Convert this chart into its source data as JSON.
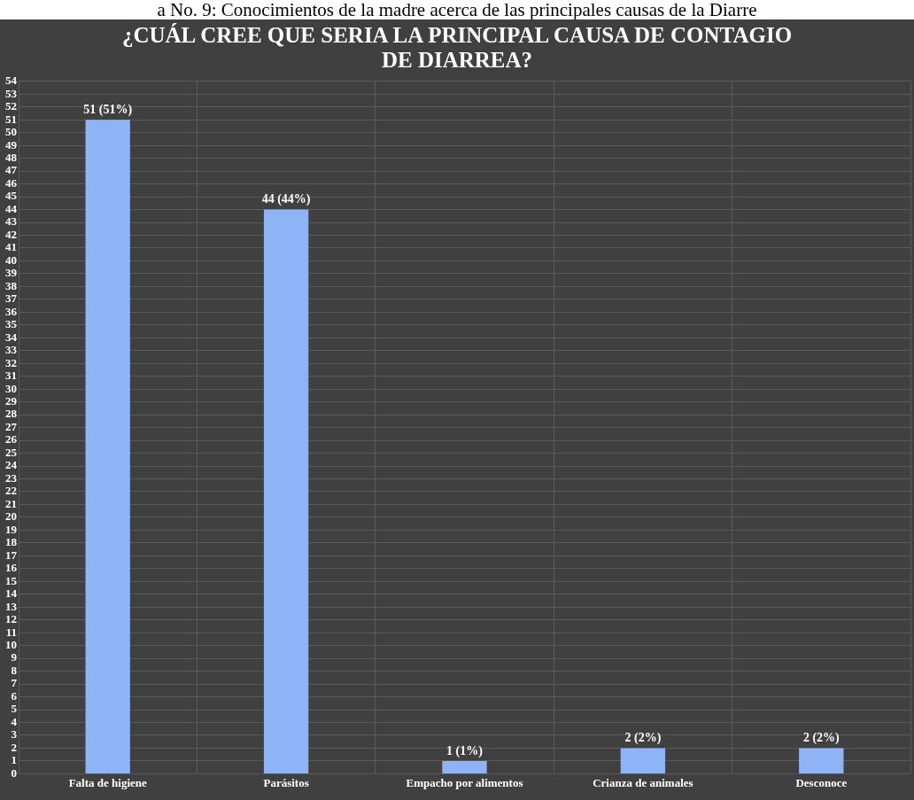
{
  "chart_data": {
    "type": "bar",
    "title": "¿CUÁL  CREE QUE SERIA LA PRINCIPAL CAUSA DE CONTAGIO DE DIARREA?",
    "annotations": [
      "a No. 9: Conocimientos de la madre acerca de las principales causas de la Diarre"
    ],
    "categories": [
      "Falta de higiene",
      "Parásitos",
      "Empacho por alimentos",
      "Crianza de animales",
      "Desconoce"
    ],
    "values": [
      51,
      44,
      1,
      2,
      2
    ],
    "value_labels": [
      "51 (51%)",
      "44 (44%)",
      "1 (1%)",
      "2 (2%)",
      "2 (2%)"
    ],
    "color": "#8fb4f5",
    "ylim": [
      0,
      54
    ],
    "yticks": [
      0,
      1,
      2,
      3,
      4,
      5,
      6,
      7,
      8,
      9,
      10,
      11,
      12,
      13,
      14,
      15,
      16,
      17,
      18,
      19,
      20,
      21,
      22,
      23,
      24,
      25,
      26,
      27,
      28,
      29,
      30,
      31,
      32,
      33,
      34,
      35,
      36,
      37,
      38,
      39,
      40,
      41,
      42,
      43,
      44,
      45,
      46,
      47,
      48,
      49,
      50,
      51,
      52,
      53,
      54
    ],
    "grid": true,
    "legend": false
  }
}
